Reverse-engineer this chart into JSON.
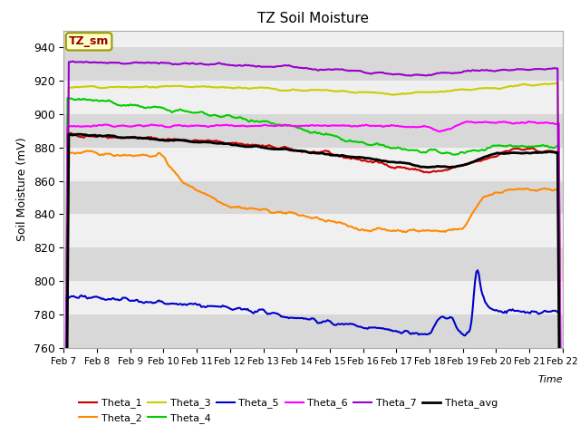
{
  "title": "TZ Soil Moisture",
  "xlabel": "Time",
  "ylabel": "Soil Moisture (mV)",
  "ylim": [
    760,
    950
  ],
  "xlim": [
    0,
    15
  ],
  "label_box_text": "TZ_sm",
  "x_tick_labels": [
    "Feb 7",
    "Feb 8",
    "Feb 9",
    "Feb 10",
    "Feb 11",
    "Feb 12",
    "Feb 13",
    "Feb 14",
    "Feb 15",
    "Feb 16",
    "Feb 17",
    "Feb 18",
    "Feb 19",
    "Feb 20",
    "Feb 21",
    "Feb 22"
  ],
  "series": {
    "Theta_1": {
      "color": "#cc0000",
      "linewidth": 1.5
    },
    "Theta_2": {
      "color": "#ff8800",
      "linewidth": 1.5
    },
    "Theta_3": {
      "color": "#cccc00",
      "linewidth": 1.5
    },
    "Theta_4": {
      "color": "#00cc00",
      "linewidth": 1.5
    },
    "Theta_5": {
      "color": "#0000cc",
      "linewidth": 1.5
    },
    "Theta_6": {
      "color": "#ff00ff",
      "linewidth": 1.5
    },
    "Theta_7": {
      "color": "#9900cc",
      "linewidth": 1.5
    },
    "Theta_avg": {
      "color": "#000000",
      "linewidth": 2.0
    }
  },
  "legend_row1": [
    "Theta_1",
    "Theta_2",
    "Theta_3",
    "Theta_4",
    "Theta_5",
    "Theta_6"
  ],
  "legend_row2": [
    "Theta_7",
    "Theta_avg"
  ]
}
